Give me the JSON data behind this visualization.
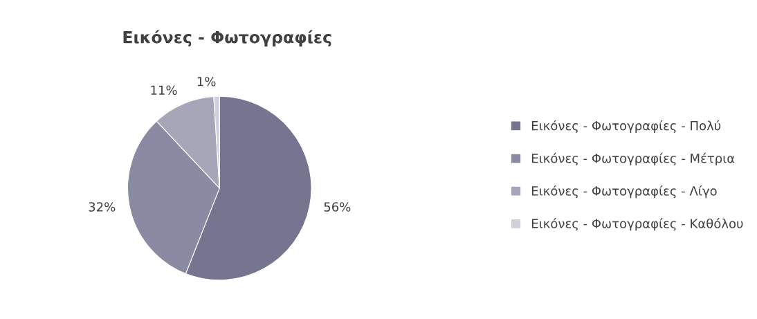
{
  "chart_data": {
    "type": "pie",
    "title": "Εικόνες - Φωτογραφίες",
    "categories": [
      "Εικόνες - Φωτογραφίες - Πολύ",
      "Εικόνες - Φωτογραφίες - Μέτρια",
      "Εικόνες - Φωτογραφίες - Λίγο",
      "Εικόνες - Φωτογραφίες - Καθόλου"
    ],
    "values": [
      56,
      32,
      11,
      1
    ],
    "value_labels": [
      "56%",
      "32%",
      "11%",
      "1%"
    ],
    "colors": [
      "#75758f",
      "#8a8aa3",
      "#a6a6b8",
      "#d0d0dc"
    ],
    "legend": "right"
  }
}
